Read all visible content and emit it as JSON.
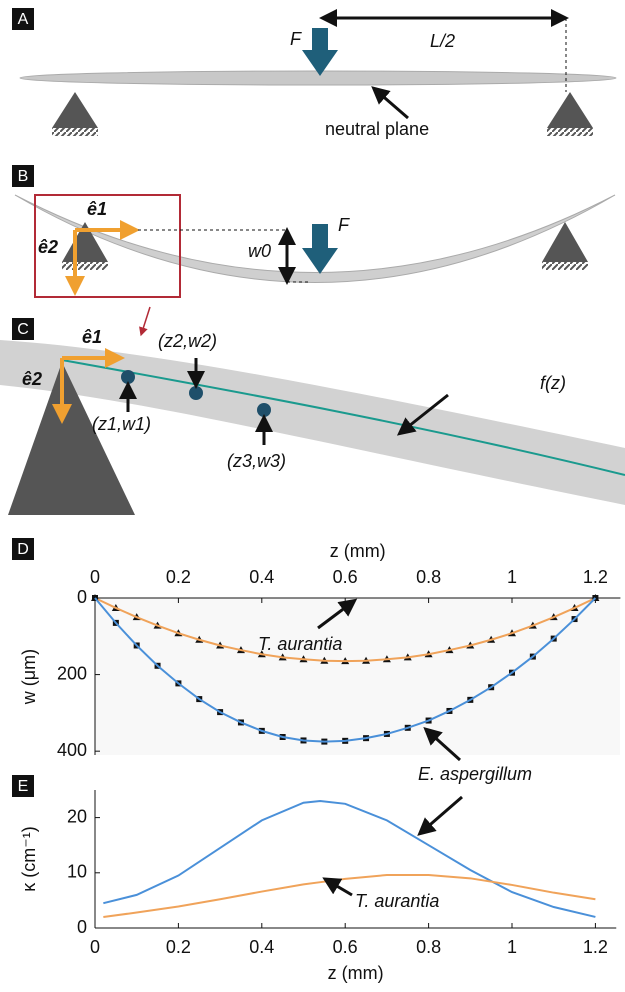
{
  "panels": {
    "a": {
      "label": "A",
      "force": "F",
      "span": "L/2",
      "annotation": "neutral plane"
    },
    "b": {
      "label": "B",
      "e1": "ê1",
      "e2": "ê2",
      "deflection": "w0",
      "force": "F"
    },
    "c": {
      "label": "C",
      "e1": "ê1",
      "e2": "ê2",
      "points": [
        "(z1,w1)",
        "(z2,w2)",
        "(z3,w3)"
      ],
      "curve": "f(z)"
    },
    "d": {
      "label": "D"
    },
    "e": {
      "label": "E"
    }
  },
  "chart_data": [
    {
      "type": "line",
      "xlabel": "z (mm)",
      "ylabel": "w (μm)",
      "x_axis": "top",
      "y_inverted": true,
      "x": [
        0,
        0.05,
        0.1,
        0.15,
        0.2,
        0.25,
        0.3,
        0.35,
        0.4,
        0.45,
        0.5,
        0.55,
        0.6,
        0.65,
        0.7,
        0.75,
        0.8,
        0.85,
        0.9,
        0.95,
        1.0,
        1.05,
        1.1,
        1.15,
        1.2
      ],
      "xlim": [
        0,
        1.26
      ],
      "xticks": [
        0,
        0.2,
        0.4,
        0.6,
        0.8,
        1,
        1.2
      ],
      "ylim": [
        0,
        410
      ],
      "yticks": [
        0,
        200,
        400
      ],
      "series": [
        {
          "name": "T. aurantia",
          "color": "#f0a35a",
          "marker": "triangle",
          "values": [
            0,
            26,
            50,
            72,
            92,
            109,
            124,
            136,
            147,
            155,
            160,
            164,
            165,
            164,
            160,
            155,
            147,
            136,
            124,
            109,
            92,
            72,
            50,
            26,
            0
          ]
        },
        {
          "name": "E. aspergillum",
          "color": "#4a90d9",
          "marker": "square",
          "values": [
            0,
            65,
            124,
            177,
            223,
            264,
            298,
            325,
            347,
            363,
            372,
            375,
            373,
            366,
            355,
            339,
            320,
            295,
            266,
            233,
            195,
            153,
            106,
            55,
            0
          ]
        }
      ]
    },
    {
      "type": "line",
      "xlabel": "z (mm)",
      "ylabel": "κ (cm⁻¹)",
      "x_axis": "bottom",
      "x": [
        0.02,
        0.1,
        0.2,
        0.3,
        0.4,
        0.5,
        0.54,
        0.6,
        0.7,
        0.8,
        0.9,
        1.0,
        1.1,
        1.2
      ],
      "xlim": [
        0,
        1.25
      ],
      "xticks": [
        0,
        0.2,
        0.4,
        0.6,
        0.8,
        1,
        1.2
      ],
      "ylim": [
        0,
        25
      ],
      "yticks": [
        0,
        10,
        20
      ],
      "series": [
        {
          "color": "#4a90d9",
          "values": [
            4.5,
            6,
            9.5,
            14.5,
            19.5,
            22.7,
            23,
            22.5,
            19.5,
            15,
            10.5,
            6.5,
            3.8,
            2
          ]
        },
        {
          "name": "T. aurantia",
          "color": "#f0a35a",
          "values": [
            2,
            2.8,
            3.9,
            5.2,
            6.6,
            7.9,
            8.3,
            8.9,
            9.6,
            9.6,
            9.0,
            7.8,
            6.4,
            5.2
          ]
        }
      ]
    }
  ]
}
